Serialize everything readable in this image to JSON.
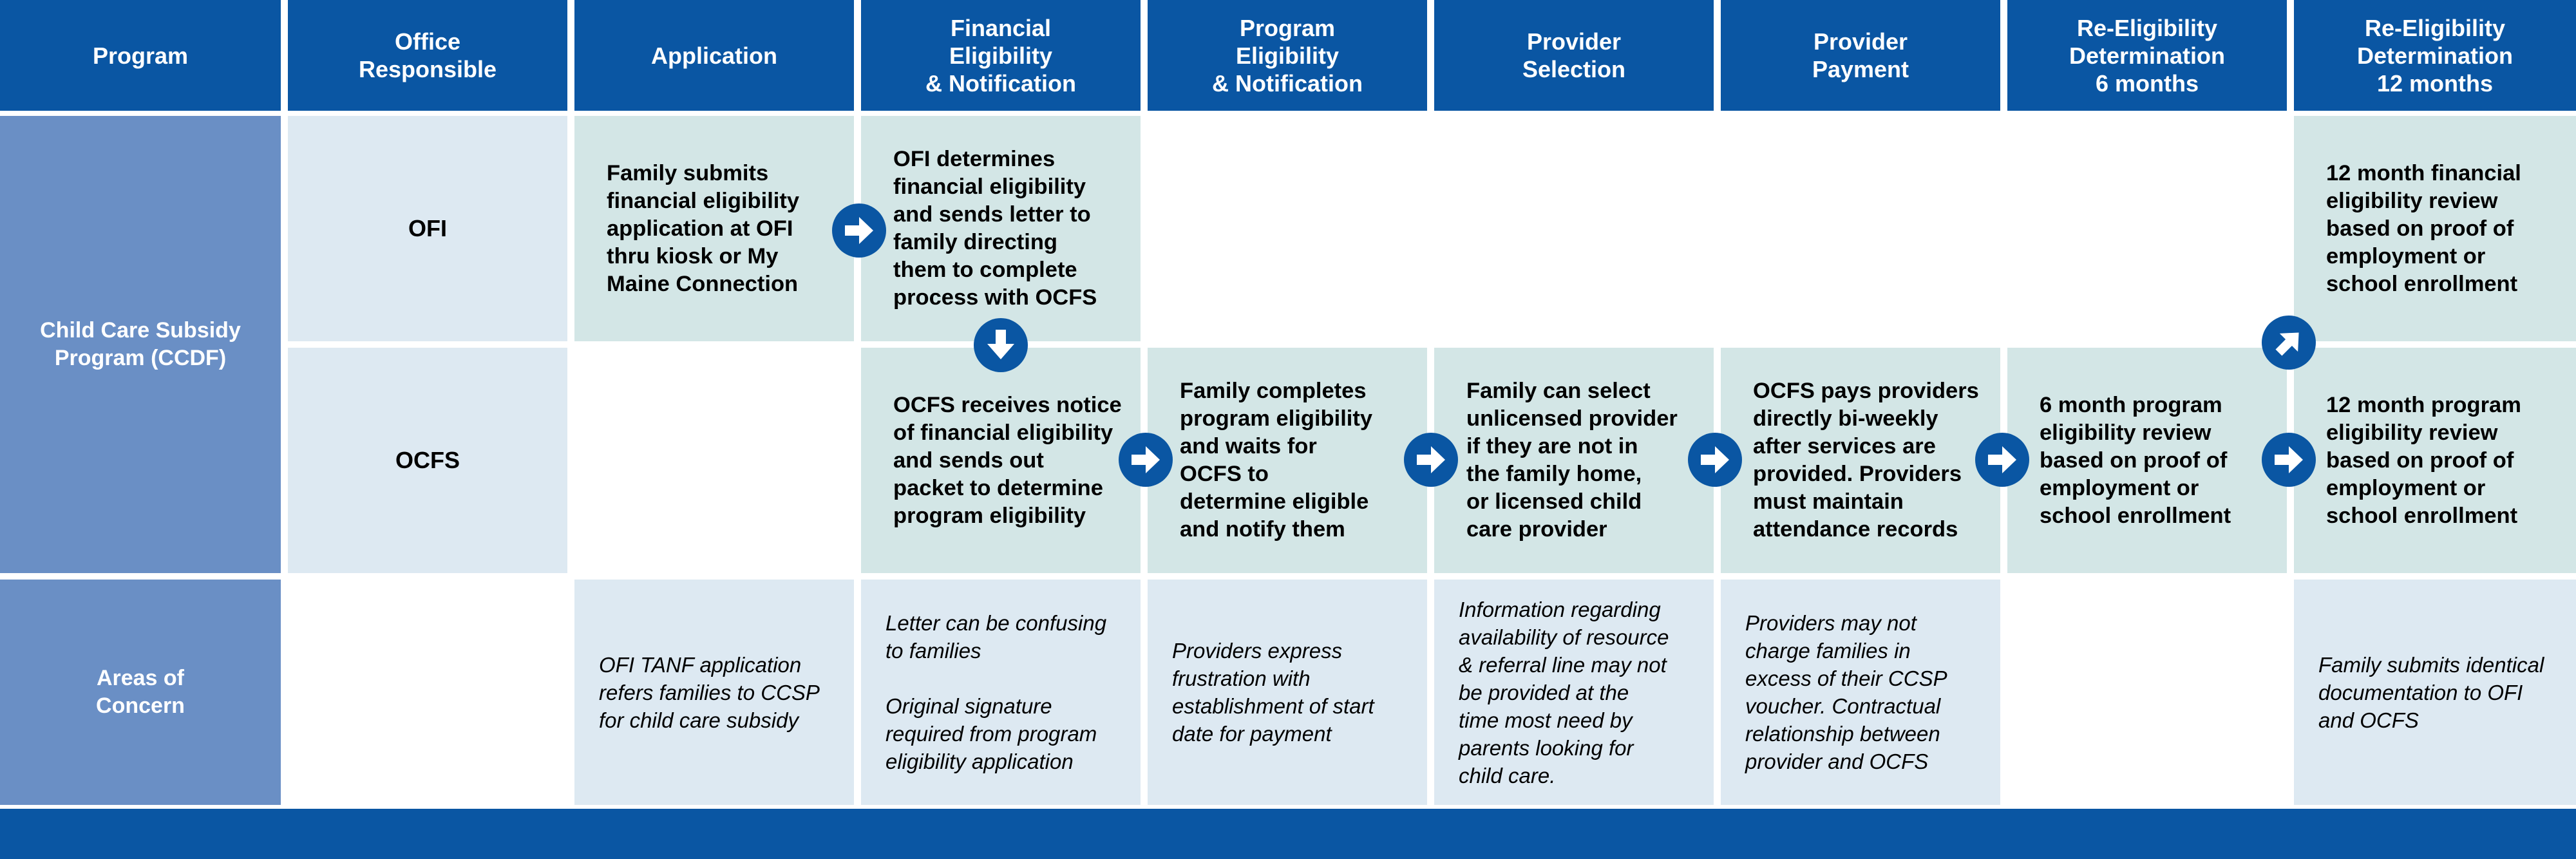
{
  "colors": {
    "header_blue": "#0a56a3",
    "side_blue": "#6a8fc5",
    "process_teal": "#d3e6e6",
    "concern_light_blue": "#dde9f2",
    "arrow_blue": "#0a56a3"
  },
  "headers": [
    "Program",
    "Office\nResponsible",
    "Application",
    "Financial\nEligibility\n& Notification",
    "Program\nEligibility\n& Notification",
    "Provider\nSelection",
    "Provider\nPayment",
    "Re-Eligibility\nDetermination\n6 months",
    "Re-Eligibility\nDetermination\n12 months"
  ],
  "program": {
    "name": "Child Care Subsidy\nProgram (CCDF)",
    "concerns_label": "Areas of\nConcern"
  },
  "offices": [
    "OFI",
    "OCFS"
  ],
  "ofi_row": {
    "application": "Family submits\nfinancial eligibility\napplication at OFI\nthru kiosk or My\nMaine Connection",
    "financial": "OFI determines\nfinancial eligibility\nand sends letter to\nfamily directing\nthem to complete\nprocess with OCFS",
    "redet_12": "12 month financial\neligibility review\nbased on proof of\nemployment or\nschool enrollment"
  },
  "ocfs_row": {
    "financial": "OCFS receives notice\nof financial eligibility\nand sends out\npacket to determine\nprogram eligibility",
    "program": "Family completes\nprogram eligibility\nand waits for\nOCFS to\ndetermine eligible\nand notify them",
    "provider_selection": "Family can select\nunlicensed provider\nif they are not in\nthe family home,\nor licensed child\ncare provider",
    "provider_payment": "OCFS pays providers\ndirectly bi-weekly\nafter services are\nprovided. Providers\nmust maintain\nattendance records",
    "redet_6": "6 month program\neligibility review\nbased on proof of\nemployment or\nschool enrollment",
    "redet_12": "12 month program\neligibility review\nbased on proof of\nemployment or\nschool enrollment"
  },
  "concerns": {
    "application": "OFI TANF application\nrefers families to CCSP\nfor child care subsidy",
    "financial": "Letter can be confusing\nto families\n\nOriginal signature\nrequired from program\neligibility application",
    "program": "Providers express\nfrustration with\nestablishment of start\ndate for payment",
    "provider_selection": "Information regarding\navailability of resource\n& referral line may not\nbe provided at the\ntime most need by\nparents looking for\nchild care.",
    "provider_payment": "Providers may not\ncharge families in\nexcess of their CCSP\nvoucher. Contractual\nrelationship between\nprovider and OCFS",
    "redet_12": "Family submits identical\ndocumentation to OFI\nand OCFS"
  },
  "arrows": [
    "right-arrow-icon",
    "down-arrow-icon",
    "up-right-arrow-icon"
  ]
}
